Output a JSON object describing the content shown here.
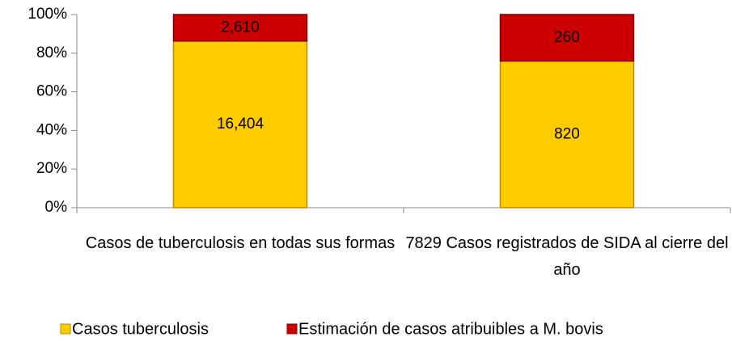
{
  "chart_data": {
    "type": "bar",
    "stacking": "percent",
    "categories": [
      "Casos de tuberculosis en todas sus formas",
      "7829 Casos registrados de SIDA al cierre del año"
    ],
    "series": [
      {
        "name": "Casos tuberculosis",
        "color": "#ffcc00",
        "values": [
          16404,
          820
        ],
        "value_labels": [
          "16,404",
          "820"
        ]
      },
      {
        "name": "Estimación de casos atribuibles a M. bovis",
        "color": "#cc0000",
        "values": [
          2610,
          260
        ],
        "value_labels": [
          "2,610",
          "260"
        ]
      }
    ],
    "ylim": [
      0,
      100
    ],
    "yticks": [
      {
        "value": 0,
        "label": "0%"
      },
      {
        "value": 20,
        "label": "20%"
      },
      {
        "value": 40,
        "label": "40%"
      },
      {
        "value": 60,
        "label": "60%"
      },
      {
        "value": 80,
        "label": "80%"
      },
      {
        "value": 100,
        "label": "100%"
      }
    ],
    "legend": "bottom"
  }
}
